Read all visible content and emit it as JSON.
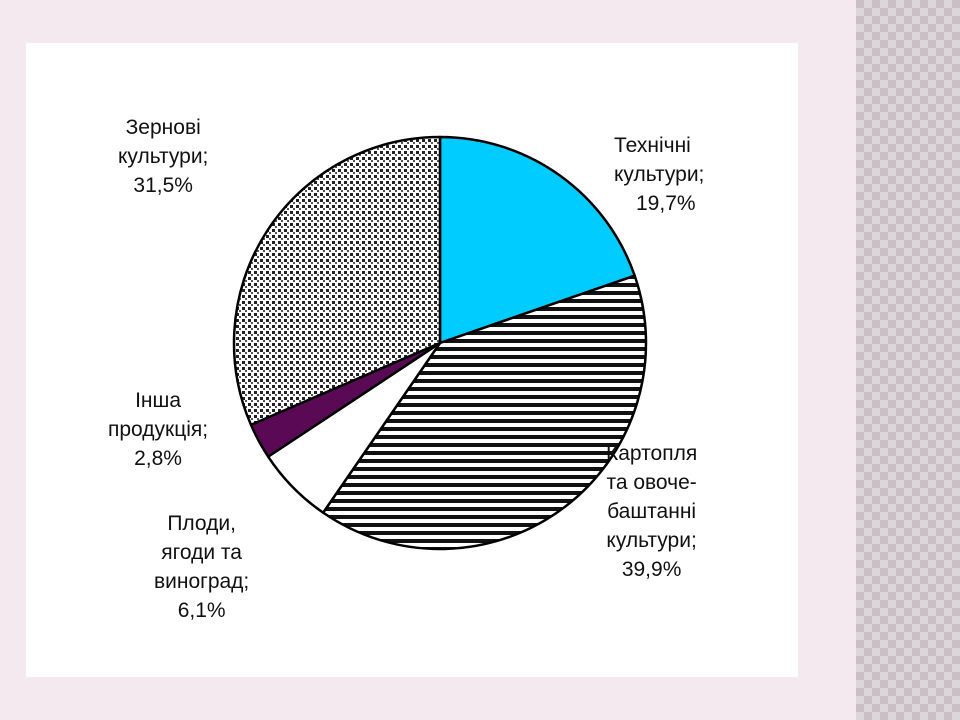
{
  "chart_data": {
    "type": "pie",
    "slices": [
      {
        "name": "Технічні культури",
        "value": 19.7,
        "color": "#00ccff",
        "pattern": "solid"
      },
      {
        "name": "Картопля та овоче-баштанні культури",
        "value": 39.9,
        "color": "#ffffff",
        "pattern": "horizontal-stripes"
      },
      {
        "name": "Плоди, ягоди та виноград",
        "value": 6.1,
        "color": "#ffffff",
        "pattern": "none"
      },
      {
        "name": "Інша продукція",
        "value": 2.8,
        "color": "#5a0a55",
        "pattern": "solid"
      },
      {
        "name": "Зернові культури",
        "value": 31.5,
        "color": "#ffffff",
        "pattern": "dots"
      }
    ]
  },
  "labels": {
    "technical": [
      "Технічні",
      "культури;",
      "19,7%"
    ],
    "potato": [
      "Картопля",
      "та овоче-",
      "баштанні",
      "культури;",
      "39,9%"
    ],
    "fruits": [
      "Плоди,",
      "ягоди та",
      "виноград;",
      "6,1%"
    ],
    "other": [
      "Інша",
      "продукція;",
      "2,8%"
    ],
    "grain": [
      "Зернові",
      "культури;",
      "31,5%"
    ]
  }
}
